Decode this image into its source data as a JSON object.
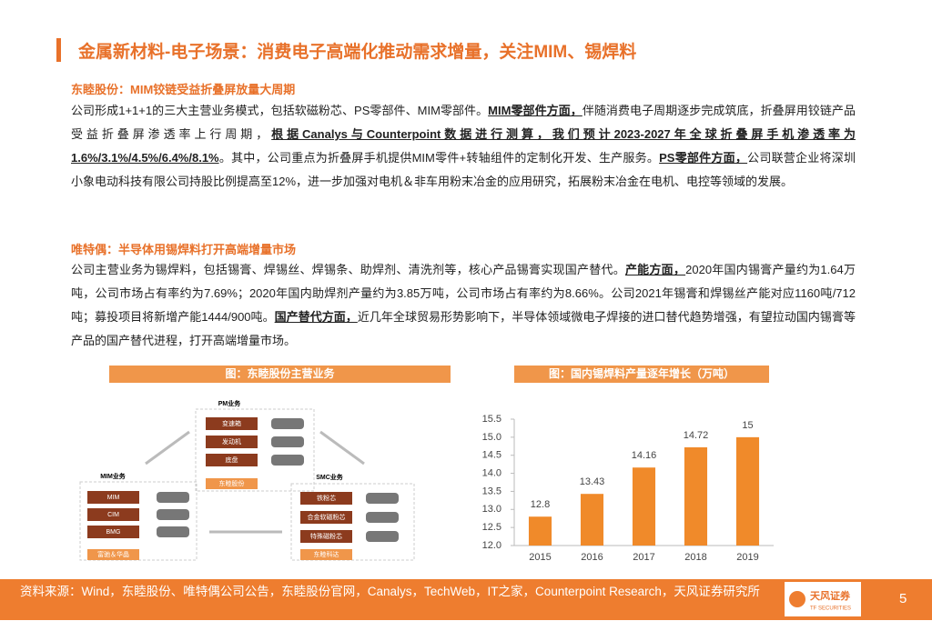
{
  "header": {
    "title": "金属新材料-电子场景：消费电子高端化推动需求增量，关注MIM、锡焊料"
  },
  "sections": [
    {
      "heading": "东睦股份：MIM铰链受益折叠屏放量大周期",
      "runs": [
        {
          "text": "公司形成1+1+1的三大主营业务模式，包括软磁粉芯、PS零部件、MIM零部件。",
          "bold": false
        },
        {
          "text": "MIM零部件方面，",
          "bold": true
        },
        {
          "text": "伴随消费电子周期逐步完成筑底，折叠屏用铰链产品受益折叠屏渗透率上行周期，",
          "bold": false
        },
        {
          "text": "根据Canalys与Counterpoint数据进行测算，我们预计2023-2027年全球折叠屏手机渗透率为1.6%/3.1%/4.5%/6.4%/8.1%",
          "bold": true
        },
        {
          "text": "。其中，公司重点为折叠屏手机提供MIM零件+转轴组件的定制化开发、生产服务。",
          "bold": false
        },
        {
          "text": "PS零部件方面，",
          "bold": true
        },
        {
          "text": "公司联营企业将深圳小象电动科技有限公司持股比例提高至12%，进一步加强对电机＆非车用粉末冶金的应用研究，拓展粉末冶金在电机、电控等领域的发展。",
          "bold": false
        }
      ]
    },
    {
      "heading": "唯特偶：半导体用锡焊料打开高端增量市场",
      "runs": [
        {
          "text": "公司主营业务为锡焊料，包括锡膏、焊锡丝、焊锡条、助焊剂、清洗剂等，核心产品锡膏实现国产替代。",
          "bold": false
        },
        {
          "text": "产能方面，",
          "bold": true
        },
        {
          "text": "2020年国内锡膏产量约为1.64万吨，公司市场占有率约为7.69%；2020年国内助焊剂产量约为3.85万吨，公司市场占有率约为8.66%。公司2021年锡膏和焊锡丝产能对应1160吨/712吨；募投项目将新增产能1444/900吨。",
          "bold": false
        },
        {
          "text": "国产替代方面，",
          "bold": true
        },
        {
          "text": "近几年全球贸易形势影响下，半导体领域微电子焊接的进口替代趋势增强，有望拉动国内锡膏等产品的国产替代进程，打开高端增量市场。",
          "bold": false
        }
      ]
    }
  ],
  "diagram": {
    "title": "图：东睦股份主营业务",
    "groups": [
      {
        "title": "PM业务",
        "items": [
          "变速箱",
          "发动机",
          "底盘"
        ],
        "company": "东睦股份"
      },
      {
        "title": "MIM业务",
        "items": [
          "MIM",
          "CIM",
          "BMG"
        ],
        "company": "富驰＆华晶"
      },
      {
        "title": "SMC业务",
        "items": [
          "铁粉芯",
          "合金软磁粉芯",
          "特殊磁粉芯"
        ],
        "company": "东睦科达"
      }
    ]
  },
  "chart_data": {
    "type": "bar",
    "title": "图：国内锡焊料产量逐年增长（万吨）",
    "categories": [
      "2015",
      "2016",
      "2017",
      "2018",
      "2019"
    ],
    "values": [
      12.8,
      13.43,
      14.16,
      14.72,
      15
    ],
    "color": "#f08a2a",
    "ylim": [
      12,
      15.5
    ],
    "yticks": [
      {
        "value": 12,
        "label": "12.0"
      },
      12.5,
      {
        "value": 13,
        "label": "13.0"
      },
      13.5,
      {
        "value": 14,
        "label": "14.0"
      },
      14.5,
      {
        "value": 15,
        "label": "15.0"
      },
      15.5
    ]
  },
  "footer": {
    "source": "资料来源：Wind，东睦股份、唯特偶公司公告，东睦股份官网，Canalys，TechWeb，IT之家，Counterpoint Research，天风证券研究所",
    "logo": "天风证券",
    "logo_sub": "TF SECURITIES",
    "page": "5"
  }
}
